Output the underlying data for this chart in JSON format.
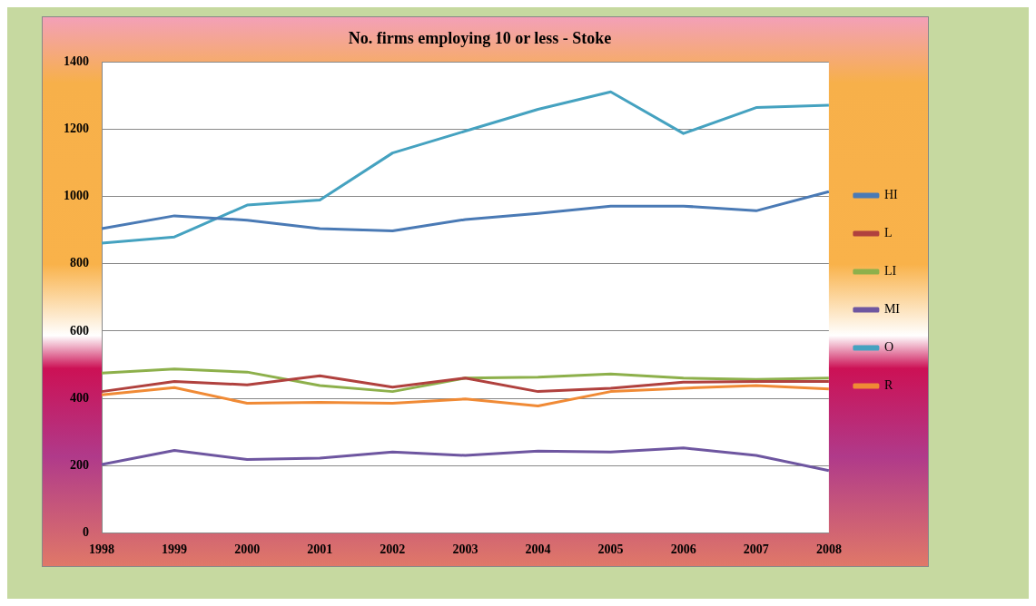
{
  "chart_data": {
    "type": "line",
    "title": "No. firms employing 10 or less - Stoke",
    "categories": [
      "1998",
      "1999",
      "2000",
      "2001",
      "2002",
      "2003",
      "2004",
      "2005",
      "2006",
      "2007",
      "2008"
    ],
    "series": [
      {
        "name": "HI",
        "color": "#4a7ab5",
        "values": [
          905,
          943,
          930,
          905,
          898,
          932,
          950,
          972,
          972,
          958,
          1015
        ]
      },
      {
        "name": "L",
        "color": "#b0413e",
        "values": [
          420,
          450,
          440,
          467,
          433,
          460,
          420,
          430,
          448,
          450,
          450
        ]
      },
      {
        "name": "LI",
        "color": "#8db04b",
        "values": [
          475,
          487,
          478,
          438,
          420,
          460,
          463,
          472,
          460,
          456,
          460
        ]
      },
      {
        "name": "MI",
        "color": "#6e56a0",
        "values": [
          203,
          245,
          218,
          222,
          240,
          230,
          243,
          240,
          252,
          230,
          185
        ]
      },
      {
        "name": "O",
        "color": "#45a2c0",
        "values": [
          862,
          880,
          975,
          990,
          1130,
          1195,
          1260,
          1312,
          1188,
          1265,
          1272
        ]
      },
      {
        "name": "R",
        "color": "#f08a35",
        "values": [
          410,
          432,
          385,
          388,
          385,
          398,
          377,
          420,
          430,
          438,
          428
        ]
      }
    ],
    "ylim": [
      0,
      1400
    ],
    "yticks": [
      0,
      200,
      400,
      600,
      800,
      1000,
      1200,
      1400
    ],
    "grid": "y",
    "legend": "right",
    "marker": "none",
    "line_style": "solid"
  }
}
